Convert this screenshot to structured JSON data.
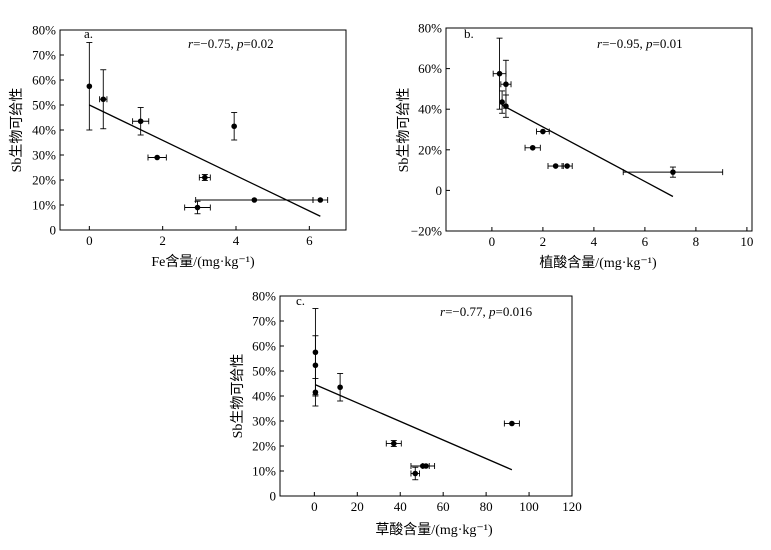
{
  "chart_data": [
    {
      "id": "a",
      "type": "scatter",
      "panel_label": "a.",
      "annotation": {
        "r_sym": "r",
        "r_val": "=−0.75, ",
        "p_sym": "p",
        "p_val": "=0.02"
      },
      "xlabel": "Fe含量/(mg·kg⁻¹)",
      "ylabel": "Sb生物可给性",
      "xlim": [
        -0.8,
        7.0
      ],
      "ylim": [
        0,
        80
      ],
      "xticks": [
        0,
        2,
        4,
        6
      ],
      "xtick_labels": [
        "0",
        "2",
        "4",
        "6"
      ],
      "yticks": [
        0,
        10,
        20,
        30,
        40,
        50,
        60,
        70,
        80
      ],
      "ytick_labels": [
        "0",
        "10%",
        "20%",
        "30%",
        "40%",
        "50%",
        "60%",
        "70%",
        "80%"
      ],
      "points": [
        {
          "x": 0.0,
          "y": 57.5,
          "yerr": 17.5,
          "xerr": 0
        },
        {
          "x": 0.38,
          "y": 52.3,
          "yerr": 11.8,
          "xerr": 0.1
        },
        {
          "x": 1.4,
          "y": 43.5,
          "yerr": 5.5,
          "xerr": 0.22
        },
        {
          "x": 1.85,
          "y": 29.0,
          "yerr": 0,
          "xerr": 0.25
        },
        {
          "x": 3.95,
          "y": 41.5,
          "yerr": 5.5,
          "xerr": 0
        },
        {
          "x": 3.15,
          "y": 21.0,
          "yerr": 1.2,
          "xerr": 0.15
        },
        {
          "x": 2.95,
          "y": 9.0,
          "yerr": 2.5,
          "xerr": 0.35
        },
        {
          "x": 4.5,
          "y": 12.0,
          "yerr": 0,
          "xerr": 1.6
        },
        {
          "x": 6.3,
          "y": 12.0,
          "yerr": 0,
          "xerr": 0.2
        }
      ],
      "fit_line": {
        "x": [
          0.0,
          6.3
        ],
        "y": [
          50.0,
          5.5
        ]
      }
    },
    {
      "id": "b",
      "type": "scatter",
      "panel_label": "b.",
      "annotation": {
        "r_sym": "r",
        "r_val": "=−0.95, ",
        "p_sym": "p",
        "p_val": "=0.01"
      },
      "xlabel": "植酸含量/(mg·kg⁻¹)",
      "ylabel": "Sb生物可给性",
      "xlim": [
        -1.8,
        10.2
      ],
      "ylim": [
        -20,
        80
      ],
      "xticks": [
        0,
        2,
        4,
        6,
        8,
        10
      ],
      "xtick_labels": [
        "0",
        "2",
        "4",
        "6",
        "8",
        "10"
      ],
      "yticks": [
        -20,
        0,
        20,
        40,
        60,
        80
      ],
      "ytick_labels": [
        "−20%",
        "0",
        "20%",
        "40%",
        "60%",
        "80%"
      ],
      "points": [
        {
          "x": 0.3,
          "y": 57.5,
          "yerr": 17.5,
          "xerr": 0.25
        },
        {
          "x": 0.55,
          "y": 52.3,
          "yerr": 11.8,
          "xerr": 0.2
        },
        {
          "x": 0.4,
          "y": 43.5,
          "yerr": 5.5,
          "xerr": 0
        },
        {
          "x": 0.55,
          "y": 41.5,
          "yerr": 5.5,
          "xerr": 0
        },
        {
          "x": 2.0,
          "y": 29.0,
          "yerr": 0,
          "xerr": 0.25
        },
        {
          "x": 1.6,
          "y": 21.0,
          "yerr": 0,
          "xerr": 0.3
        },
        {
          "x": 2.5,
          "y": 12.0,
          "yerr": 0,
          "xerr": 0.3
        },
        {
          "x": 2.95,
          "y": 12.0,
          "yerr": 0,
          "xerr": 0.2
        },
        {
          "x": 7.1,
          "y": 9.0,
          "yerr": 2.5,
          "xerr": 1.95
        }
      ],
      "fit_line": {
        "x": [
          0.4,
          7.1
        ],
        "y": [
          42.0,
          -3.0
        ]
      }
    },
    {
      "id": "c",
      "type": "scatter",
      "panel_label": "c.",
      "annotation": {
        "r_sym": "r",
        "r_val": "=−0.77, ",
        "p_sym": "p",
        "p_val": "=0.016"
      },
      "xlabel": "草酸含量/(mg·kg⁻¹)",
      "ylabel": "Sb生物可给性",
      "xlim": [
        -16,
        120
      ],
      "ylim": [
        0,
        80
      ],
      "xticks": [
        0,
        20,
        40,
        60,
        80,
        100,
        120
      ],
      "xtick_labels": [
        "0",
        "20",
        "40",
        "60",
        "80",
        "100",
        "120"
      ],
      "yticks": [
        0,
        10,
        20,
        30,
        40,
        50,
        60,
        70,
        80
      ],
      "ytick_labels": [
        "0",
        "10%",
        "20%",
        "30%",
        "40%",
        "50%",
        "60%",
        "70%",
        "80%"
      ],
      "points": [
        {
          "x": 0.5,
          "y": 57.5,
          "yerr": 17.5,
          "xerr": 0
        },
        {
          "x": 0.5,
          "y": 52.3,
          "yerr": 11.8,
          "xerr": 0
        },
        {
          "x": 0.5,
          "y": 41.5,
          "yerr": 5.5,
          "xerr": 0
        },
        {
          "x": 12.0,
          "y": 43.5,
          "yerr": 5.5,
          "xerr": 0
        },
        {
          "x": 37.0,
          "y": 21.0,
          "yerr": 1.2,
          "xerr": 3.5
        },
        {
          "x": 92.0,
          "y": 29.0,
          "yerr": 0,
          "xerr": 3.5
        },
        {
          "x": 50.5,
          "y": 12.0,
          "yerr": 0,
          "xerr": 5.5
        },
        {
          "x": 52.0,
          "y": 12.0,
          "yerr": 0,
          "xerr": 1.5
        },
        {
          "x": 47.0,
          "y": 9.0,
          "yerr": 2.5,
          "xerr": 2.0
        }
      ],
      "fit_line": {
        "x": [
          0.5,
          92.0
        ],
        "y": [
          44.5,
          10.5
        ]
      }
    }
  ]
}
